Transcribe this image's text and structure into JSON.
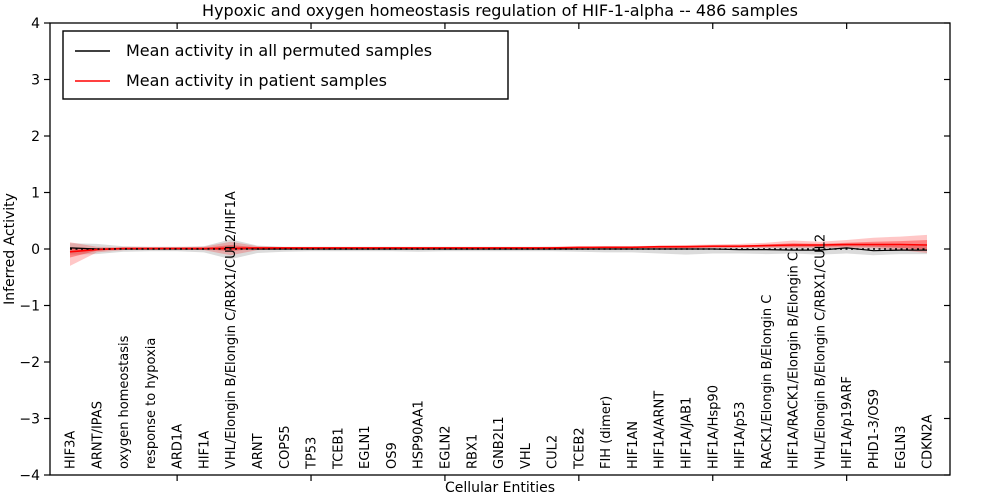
{
  "figure": {
    "title": "Hypoxic and oxygen homeostasis regulation of HIF-1-alpha -- 486 samples",
    "xlabel": "Cellular Entities",
    "ylabel": "Inferred Activity",
    "background_color": "#ffffff",
    "frame_color": "#000000"
  },
  "legend": {
    "entries": [
      {
        "label": "Mean activity in all permuted samples",
        "color": "#000000"
      },
      {
        "label": "Mean activity in patient samples",
        "color": "#ff0000"
      }
    ]
  },
  "chart_data": {
    "type": "line",
    "title": "Hypoxic and oxygen homeostasis regulation of HIF-1-alpha -- 486 samples",
    "xlabel": "Cellular Entities",
    "ylabel": "Inferred Activity",
    "ylim": [
      -4,
      4
    ],
    "yticks": [
      -4,
      -3,
      -2,
      -1,
      0,
      1,
      2,
      3,
      4
    ],
    "x_major_tick_every": 5,
    "grid": false,
    "legend_position": "upper left",
    "zero_reference_line": {
      "value": 0,
      "style": "dotted",
      "color": "#000000"
    },
    "categories": [
      "HIF3A",
      "ARNT/IPAS",
      "oxygen homeostasis",
      "response to hypoxia",
      "ARD1A",
      "HIF1A",
      "VHL/Elongin B/Elongin C/RBX1/CUL2/HIF1A",
      "ARNT",
      "COPS5",
      "TP53",
      "TCEB1",
      "EGLN1",
      "OS9",
      "HSP90AA1",
      "EGLN2",
      "RBX1",
      "GNB2L1",
      "VHL",
      "CUL2",
      "TCEB2",
      "FIH (dimer)",
      "HIF1AN",
      "HIF1A/ARNT",
      "HIF1A/JAB1",
      "HIF1A/Hsp90",
      "HIF1A/p53",
      "RACK1/Elongin B/Elongin C",
      "HIF1A/RACK1/Elongin B/Elongin C",
      "VHL/Elongin B/Elongin C/RBX1/CUL2",
      "HIF1A/p19ARF",
      "PHD1-3/OS9",
      "EGLN3",
      "CDKN2A"
    ],
    "series": [
      {
        "name": "Mean activity in all permuted samples",
        "color": "#000000",
        "line_width": 1.2,
        "band_fill": "rgba(0,0,0,0.14)",
        "values": [
          0.02,
          0.0,
          0.0,
          0.0,
          0.0,
          0.0,
          0.01,
          0.0,
          0.0,
          0.0,
          0.0,
          0.0,
          0.0,
          0.0,
          0.0,
          0.0,
          0.0,
          0.0,
          0.0,
          0.0,
          0.0,
          0.0,
          0.0,
          0.0,
          0.0,
          -0.01,
          -0.01,
          -0.02,
          -0.02,
          0.02,
          -0.03,
          -0.02,
          -0.02
        ],
        "band_upper": [
          0.1,
          0.09,
          0.05,
          0.04,
          0.04,
          0.05,
          0.17,
          0.06,
          0.04,
          0.04,
          0.04,
          0.04,
          0.04,
          0.04,
          0.04,
          0.04,
          0.04,
          0.04,
          0.04,
          0.04,
          0.05,
          0.05,
          0.05,
          0.05,
          0.05,
          0.06,
          0.06,
          0.06,
          0.07,
          0.08,
          0.07,
          0.06,
          0.06
        ],
        "band_lower": [
          -0.1,
          -0.09,
          -0.05,
          -0.04,
          -0.04,
          -0.06,
          -0.18,
          -0.07,
          -0.05,
          -0.04,
          -0.04,
          -0.04,
          -0.04,
          -0.05,
          -0.04,
          -0.04,
          -0.04,
          -0.04,
          -0.04,
          -0.05,
          -0.06,
          -0.06,
          -0.08,
          -0.1,
          -0.08,
          -0.08,
          -0.09,
          -0.08,
          -0.1,
          -0.08,
          -0.11,
          -0.09,
          -0.09
        ]
      },
      {
        "name": "Mean activity in patient samples",
        "color": "#ff0000",
        "line_width": 1.6,
        "band_fill": "rgba(255,0,0,0.22)",
        "band_inner_fill": "rgba(255,0,0,0.35)",
        "values": [
          -0.05,
          -0.01,
          0.01,
          0.01,
          0.01,
          0.01,
          0.01,
          0.02,
          0.02,
          0.02,
          0.02,
          0.02,
          0.02,
          0.02,
          0.02,
          0.02,
          0.02,
          0.02,
          0.02,
          0.03,
          0.03,
          0.03,
          0.04,
          0.04,
          0.05,
          0.05,
          0.06,
          0.07,
          0.07,
          0.08,
          0.08,
          0.08,
          0.07
        ],
        "band_upper": [
          0.12,
          0.04,
          0.03,
          0.03,
          0.03,
          0.04,
          0.13,
          0.05,
          0.03,
          0.03,
          0.03,
          0.03,
          0.03,
          0.03,
          0.03,
          0.03,
          0.03,
          0.03,
          0.04,
          0.04,
          0.05,
          0.05,
          0.06,
          0.07,
          0.08,
          0.09,
          0.11,
          0.15,
          0.13,
          0.16,
          0.2,
          0.22,
          0.25
        ],
        "band_lower": [
          -0.3,
          -0.06,
          -0.02,
          -0.01,
          -0.01,
          -0.02,
          -0.11,
          -0.02,
          -0.01,
          0.0,
          0.0,
          0.0,
          0.0,
          0.0,
          0.0,
          0.0,
          0.0,
          0.0,
          0.0,
          0.01,
          0.01,
          0.01,
          0.01,
          0.01,
          0.02,
          0.02,
          0.02,
          0.02,
          0.02,
          0.02,
          0.01,
          -0.02,
          -0.07
        ],
        "band_inner_upper": [
          0.03,
          0.01,
          0.02,
          0.02,
          0.02,
          0.02,
          0.07,
          0.03,
          0.03,
          0.03,
          0.03,
          0.03,
          0.03,
          0.03,
          0.03,
          0.03,
          0.03,
          0.03,
          0.03,
          0.04,
          0.04,
          0.04,
          0.05,
          0.05,
          0.06,
          0.06,
          0.08,
          0.1,
          0.09,
          0.11,
          0.13,
          0.14,
          0.16
        ],
        "band_inner_lower": [
          -0.15,
          -0.03,
          0.0,
          0.0,
          0.0,
          0.0,
          -0.04,
          0.01,
          0.01,
          0.01,
          0.01,
          0.01,
          0.01,
          0.01,
          0.01,
          0.01,
          0.01,
          0.01,
          0.01,
          0.02,
          0.02,
          0.02,
          0.02,
          0.02,
          0.03,
          0.03,
          0.04,
          0.04,
          0.04,
          0.05,
          0.04,
          0.02,
          -0.01
        ]
      }
    ]
  }
}
